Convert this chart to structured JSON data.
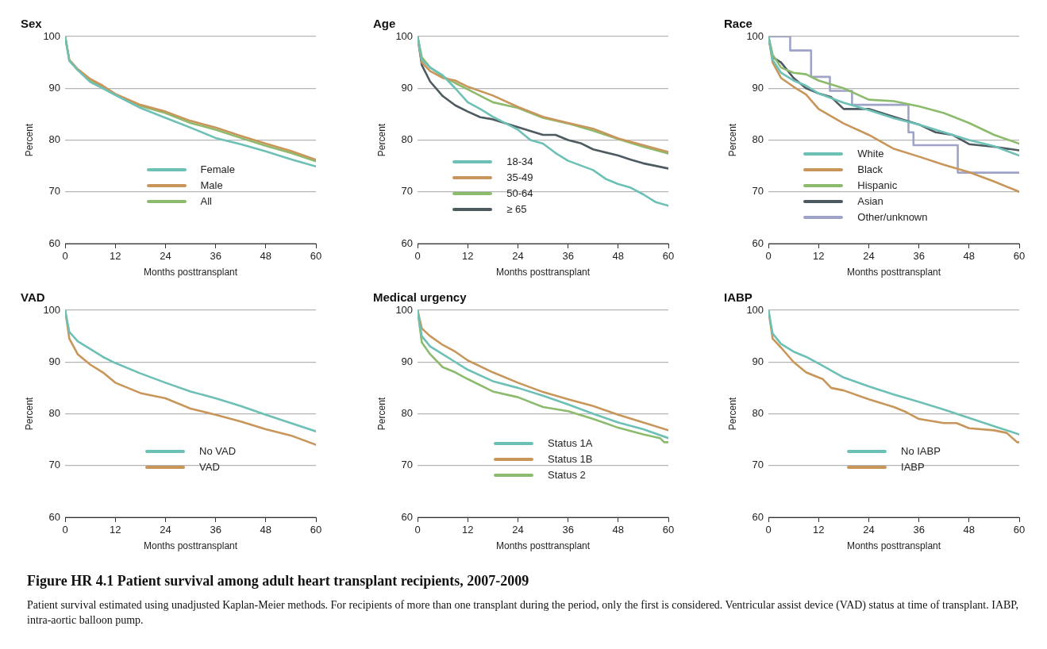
{
  "chart_data": [
    {
      "type": "line",
      "title": "Sex",
      "xlabel": "Months posttransplant",
      "ylabel": "Percent",
      "xlim": [
        0,
        60
      ],
      "xticks": [
        0,
        12,
        24,
        36,
        48,
        60
      ],
      "ylim": [
        60,
        100
      ],
      "yticks": [
        60,
        70,
        80,
        90,
        100
      ],
      "grid": "y",
      "legend": "bottom",
      "series": [
        {
          "name": "Female",
          "color": "#6dc0b6",
          "x": [
            0,
            1,
            3,
            6,
            9,
            12,
            18,
            24,
            30,
            36,
            42,
            48,
            54,
            60
          ],
          "values": [
            100,
            95.3,
            93.5,
            91.2,
            90,
            88.7,
            86.2,
            84.3,
            82.4,
            80.4,
            79.2,
            77.8,
            76.3,
            74.9
          ]
        },
        {
          "name": "Male",
          "color": "#c8965a",
          "x": [
            0,
            1,
            3,
            6,
            9,
            12,
            18,
            24,
            30,
            36,
            42,
            48,
            54,
            60
          ],
          "values": [
            100,
            95.5,
            93.7,
            91.8,
            90.5,
            88.9,
            86.8,
            85.5,
            83.7,
            82.4,
            80.8,
            79.3,
            77.9,
            76.2
          ]
        },
        {
          "name": "All",
          "color": "#8dbb6e",
          "x": [
            0,
            1,
            3,
            6,
            9,
            12,
            18,
            24,
            30,
            36,
            42,
            48,
            54,
            60
          ],
          "values": [
            100,
            95.4,
            93.6,
            91.6,
            90.3,
            88.8,
            86.6,
            85.2,
            83.3,
            82,
            80.4,
            78.9,
            77.5,
            75.9
          ]
        }
      ]
    },
    {
      "type": "line",
      "title": "Age",
      "xlabel": "Months posttransplant",
      "ylabel": "Percent",
      "xlim": [
        0,
        60
      ],
      "xticks": [
        0,
        12,
        24,
        36,
        48,
        60
      ],
      "ylim": [
        60,
        100
      ],
      "yticks": [
        60,
        70,
        80,
        90,
        100
      ],
      "grid": "y",
      "legend": "bottom left",
      "series": [
        {
          "name": "18-34",
          "color": "#6dc0b6",
          "x": [
            0,
            1,
            3,
            6,
            9,
            12,
            15,
            18,
            24,
            27,
            30,
            33,
            36,
            42,
            45,
            48,
            51,
            54,
            57,
            60
          ],
          "values": [
            100,
            95.5,
            94,
            92.5,
            90,
            87.3,
            86,
            84.5,
            82,
            80,
            79.3,
            77.5,
            76,
            74.2,
            72.5,
            71.5,
            70.8,
            69.5,
            68,
            67.3
          ]
        },
        {
          "name": "35-49",
          "color": "#c8965a",
          "x": [
            0,
            1,
            3,
            6,
            9,
            12,
            18,
            24,
            30,
            36,
            42,
            48,
            54,
            60
          ],
          "values": [
            100,
            95,
            93.3,
            92,
            91.5,
            90.3,
            88.6,
            86.4,
            84.5,
            83.3,
            82.2,
            80.3,
            79,
            77.7
          ]
        },
        {
          "name": "50-64",
          "color": "#8dbb6e",
          "x": [
            0,
            1,
            3,
            6,
            9,
            12,
            18,
            24,
            30,
            36,
            42,
            48,
            54,
            60
          ],
          "values": [
            100,
            96,
            94,
            92.3,
            91,
            89.8,
            87.3,
            86.2,
            84.3,
            83.2,
            81.8,
            80.2,
            78.7,
            77.4
          ]
        },
        {
          "name": "≥ 65",
          "color": "#4d5a5f",
          "x": [
            0,
            1,
            3,
            6,
            9,
            12,
            15,
            18,
            24,
            30,
            33,
            36,
            39,
            42,
            48,
            51,
            54,
            57,
            60
          ],
          "values": [
            100,
            94.5,
            91.3,
            88.5,
            86.7,
            85.5,
            84.4,
            84,
            82.5,
            81,
            81,
            80,
            79.4,
            78.2,
            77,
            76.2,
            75.5,
            75,
            74.5
          ]
        }
      ]
    },
    {
      "type": "line",
      "title": "Race",
      "xlabel": "Months posttransplant",
      "ylabel": "Percent",
      "xlim": [
        0,
        60
      ],
      "xticks": [
        0,
        12,
        24,
        36,
        48,
        60
      ],
      "ylim": [
        60,
        100
      ],
      "yticks": [
        60,
        70,
        80,
        90,
        100
      ],
      "grid": "y",
      "legend": "bottom left",
      "series": [
        {
          "name": "White",
          "color": "#6dc0b6",
          "x": [
            0,
            1,
            3,
            6,
            9,
            12,
            18,
            24,
            30,
            36,
            42,
            48,
            54,
            60
          ],
          "values": [
            100,
            95.5,
            93,
            91.5,
            90.5,
            89,
            87.2,
            85.8,
            84.2,
            83,
            81.5,
            80,
            78.8,
            77
          ]
        },
        {
          "name": "Black",
          "color": "#c8965a",
          "x": [
            0,
            1,
            3,
            6,
            9,
            12,
            18,
            24,
            30,
            36,
            42,
            48,
            54,
            60
          ],
          "values": [
            100,
            95,
            92,
            90.3,
            88.8,
            86,
            83.2,
            81,
            78.3,
            76.8,
            75.2,
            73.8,
            72,
            70
          ]
        },
        {
          "name": "Hispanic",
          "color": "#8dbb6e",
          "x": [
            0,
            1,
            3,
            6,
            9,
            12,
            18,
            24,
            30,
            36,
            42,
            48,
            54,
            60
          ],
          "values": [
            100,
            96.5,
            94,
            93,
            92.7,
            91.5,
            90,
            87.8,
            87.5,
            86.5,
            85.2,
            83.3,
            81,
            79.3
          ]
        },
        {
          "name": "Asian",
          "color": "#4d5a5f",
          "x": [
            0,
            1,
            3,
            6,
            9,
            12,
            15,
            18,
            24,
            30,
            36,
            40,
            44,
            48,
            54,
            60
          ],
          "values": [
            100,
            96,
            95,
            92,
            90,
            89,
            88.3,
            86,
            86,
            84.5,
            83,
            81.5,
            81,
            79.2,
            78.7,
            78
          ]
        },
        {
          "name": "Other/unknown",
          "color": "#9fa3c8",
          "type": "step",
          "x": [
            0,
            5.2,
            10.2,
            14.7,
            20,
            33.5,
            34.7,
            45.3,
            60
          ],
          "values": [
            100,
            97.3,
            92.2,
            89.5,
            86.8,
            81.5,
            79,
            73.7,
            73.7
          ]
        }
      ]
    },
    {
      "type": "line",
      "title": "VAD",
      "xlabel": "Months posttransplant",
      "ylabel": "Percent",
      "xlim": [
        0,
        60
      ],
      "xticks": [
        0,
        12,
        24,
        36,
        48,
        60
      ],
      "ylim": [
        60,
        100
      ],
      "yticks": [
        60,
        70,
        80,
        90,
        100
      ],
      "grid": "y",
      "legend": "bottom",
      "series": [
        {
          "name": "No VAD",
          "color": "#6dc0b6",
          "x": [
            0,
            1,
            3,
            6,
            9,
            12,
            18,
            24,
            30,
            36,
            42,
            48,
            54,
            60
          ],
          "values": [
            100,
            95.8,
            94,
            92.5,
            91,
            89.8,
            87.8,
            86,
            84.3,
            83,
            81.5,
            79.8,
            78.2,
            76.6
          ]
        },
        {
          "name": "VAD",
          "color": "#c8965a",
          "x": [
            0,
            1,
            3,
            6,
            9,
            12,
            18,
            24,
            30,
            36,
            42,
            48,
            54,
            60
          ],
          "values": [
            100,
            94.5,
            91.5,
            89.5,
            88,
            86,
            84,
            83,
            81,
            79.8,
            78.5,
            77,
            75.8,
            74
          ]
        }
      ]
    },
    {
      "type": "line",
      "title": "Medical urgency",
      "xlabel": "Months posttransplant",
      "ylabel": "Percent",
      "xlim": [
        0,
        60
      ],
      "xticks": [
        0,
        12,
        24,
        36,
        48,
        60
      ],
      "ylim": [
        60,
        100
      ],
      "yticks": [
        60,
        70,
        80,
        90,
        100
      ],
      "grid": "y",
      "legend": "bottom",
      "series": [
        {
          "name": "Status 1A",
          "color": "#6dc0b6",
          "x": [
            0,
            1,
            3,
            6,
            9,
            12,
            18,
            24,
            30,
            36,
            42,
            48,
            54,
            60
          ],
          "values": [
            100,
            95,
            93,
            91.5,
            90,
            88.5,
            86.3,
            85,
            83.5,
            81.8,
            80,
            78.3,
            77,
            75.3
          ]
        },
        {
          "name": "Status 1B",
          "color": "#c8965a",
          "x": [
            0,
            1,
            3,
            6,
            9,
            12,
            18,
            24,
            30,
            36,
            42,
            48,
            54,
            60
          ],
          "values": [
            100,
            96.5,
            95,
            93.3,
            92,
            90.3,
            88,
            86,
            84.2,
            82.8,
            81.5,
            79.8,
            78.3,
            76.8
          ]
        },
        {
          "name": "Status 2",
          "color": "#8dbb6e",
          "x": [
            0,
            1,
            3,
            6,
            9,
            12,
            18,
            24,
            30,
            36,
            42,
            48,
            54,
            58,
            59,
            60
          ],
          "values": [
            100,
            93.8,
            91.5,
            89,
            88,
            86.7,
            84.3,
            83.2,
            81.3,
            80.5,
            79,
            77.3,
            76,
            75.3,
            74.5,
            74.5
          ]
        }
      ]
    },
    {
      "type": "line",
      "title": "IABP",
      "xlabel": "Months posttransplant",
      "ylabel": "Percent",
      "xlim": [
        0,
        60
      ],
      "xticks": [
        0,
        12,
        24,
        36,
        48,
        60
      ],
      "ylim": [
        60,
        100
      ],
      "yticks": [
        60,
        70,
        80,
        90,
        100
      ],
      "grid": "y",
      "legend": "bottom",
      "series": [
        {
          "name": "No IABP",
          "color": "#6dc0b6",
          "x": [
            0,
            1,
            3,
            6,
            9,
            12,
            18,
            24,
            30,
            36,
            42,
            48,
            54,
            60
          ],
          "values": [
            100,
            95.5,
            93.5,
            92,
            91,
            89.7,
            87,
            85.3,
            83.7,
            82.3,
            80.8,
            79.2,
            77.6,
            76
          ]
        },
        {
          "name": "IABP",
          "color": "#c8965a",
          "x": [
            0,
            1,
            3,
            6,
            9,
            12,
            13,
            15,
            18,
            24,
            30,
            33,
            36,
            42,
            45,
            48,
            54,
            57,
            59.5,
            60
          ],
          "values": [
            100,
            94.5,
            92.8,
            90,
            88,
            87,
            86.7,
            85,
            84.5,
            82.8,
            81.3,
            80.3,
            79,
            78.2,
            78.2,
            77.2,
            76.8,
            76.3,
            74.5,
            74.5
          ]
        }
      ]
    },
    {
      "type": "other",
      "title": "Figure HR 4.1 Patient survival among adult heart transplant recipients, 2007-2009",
      "annotations": [
        "Patient survival estimated using unadjusted Kaplan-Meier methods. For recipients of more than one transplant during the period, only the first is considered. Ventricular assist device (VAD) status at time of transplant. IABP, intra-aortic balloon pump."
      ]
    }
  ]
}
